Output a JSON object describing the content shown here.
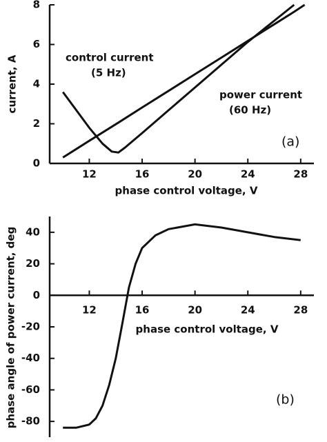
{
  "chart_data": [
    {
      "type": "line",
      "xlabel": "phase control voltage, V",
      "ylabel": "current, A",
      "annotations": [
        "control current",
        "(5 Hz)",
        "power current",
        "(60 Hz)",
        "(a)"
      ],
      "x": [
        10,
        11,
        12,
        13,
        13.7,
        14.2,
        14.7,
        16,
        18,
        20,
        22,
        24,
        26,
        27.5,
        28.3
      ],
      "series": [
        {
          "name": "control current (5 Hz)",
          "color": "#111111",
          "values": [
            3.6,
            2.7,
            1.8,
            1.0,
            0.6,
            0.55,
            0.8,
            1.53,
            2.68,
            3.83,
            4.98,
            6.13,
            7.2,
            8.0,
            null
          ]
        },
        {
          "name": "power current (60 Hz)",
          "color": "#111111",
          "values": [
            0.3,
            0.72,
            1.14,
            1.56,
            1.85,
            2.06,
            2.27,
            2.82,
            3.66,
            4.5,
            5.34,
            6.18,
            7.02,
            7.65,
            8.0
          ]
        }
      ],
      "xlim": [
        9,
        29
      ],
      "xticks": [
        12,
        16,
        20,
        24,
        28
      ],
      "ylim": [
        0,
        8
      ],
      "yticks": [
        0,
        2,
        4,
        6,
        8
      ]
    },
    {
      "type": "line",
      "xlabel": "phase control voltage, V",
      "ylabel": "phase angle of power current, deg",
      "annotations": [
        "(b)"
      ],
      "x": [
        10,
        11,
        12,
        12.5,
        13,
        13.5,
        14,
        14.5,
        15,
        15.5,
        16,
        17,
        18,
        20,
        22,
        24,
        26,
        28
      ],
      "series": [
        {
          "name": "phase angle",
          "color": "#111111",
          "values": [
            -84,
            -84,
            -82,
            -78,
            -70,
            -57,
            -40,
            -18,
            5,
            20,
            30,
            38,
            42,
            45,
            43,
            40,
            37,
            35
          ]
        }
      ],
      "xlim": [
        9,
        29
      ],
      "xticks": [
        12,
        16,
        20,
        24,
        28
      ],
      "ylim": [
        -90,
        50
      ],
      "yticks": [
        -80,
        -60,
        -40,
        -20,
        0,
        20,
        40
      ]
    }
  ]
}
